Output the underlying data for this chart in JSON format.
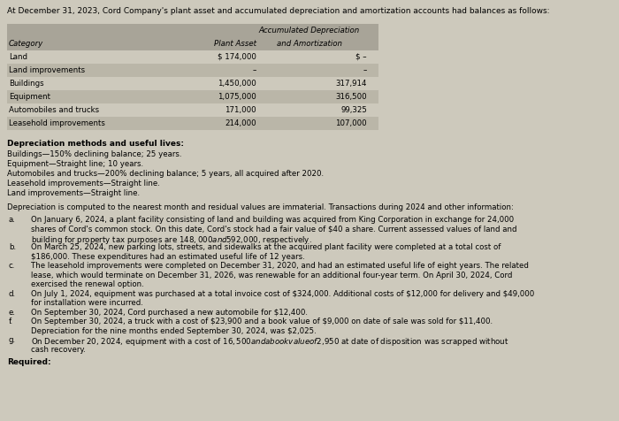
{
  "title": "At December 31, 2023, Cord Company's plant asset and accumulated depreciation and amortization accounts had balances as follows:",
  "bg_color": "#cdc9bc",
  "table": {
    "header_row1": [
      "",
      "",
      "Accumulated Depreciation"
    ],
    "header_row2": [
      "Category",
      "Plant Asset",
      "and Amortization"
    ],
    "rows": [
      [
        "Land",
        "$ 174,000",
        "$ –"
      ],
      [
        "Land improvements",
        "–",
        "–"
      ],
      [
        "Buildings",
        "1,450,000",
        "317,914"
      ],
      [
        "Equipment",
        "1,075,000",
        "316,500"
      ],
      [
        "Automobiles and trucks",
        "171,000",
        "99,325"
      ],
      [
        "Leasehold improvements",
        "214,000",
        "107,000"
      ]
    ],
    "header_bg": "#a8a498",
    "row_bg_alt": "#bab6a8"
  },
  "depreciation_header": "Depreciation methods and useful lives:",
  "depreciation_lines": [
    "Buildings—150% declining balance; 25 years.",
    "Equipment—Straight line; 10 years.",
    "Automobiles and trucks—200% declining balance; 5 years, all acquired after 2020.",
    "Leasehold improvements—Straight line.",
    "Land improvements—Straight line."
  ],
  "intro_line": "Depreciation is computed to the nearest month and residual values are immaterial. Transactions during 2024 and other information:",
  "transactions": [
    {
      "label": "a.",
      "lines": [
        "On January 6, 2024, a plant facility consisting of land and building was acquired from King Corporation in exchange for 24,000",
        "shares of Cord's common stock. On this date, Cord's stock had a fair value of $40 a share. Current assessed values of land and",
        "building for property tax purposes are $148,000 and $592,000, respectively."
      ]
    },
    {
      "label": "b.",
      "lines": [
        "On March 25, 2024, new parking lots, streets, and sidewalks at the acquired plant facility were completed at a total cost of",
        "$186,000. These expenditures had an estimated useful life of 12 years."
      ]
    },
    {
      "label": "c.",
      "lines": [
        "The leasehold improvements were completed on December 31, 2020, and had an estimated useful life of eight years. The related",
        "lease, which would terminate on December 31, 2026, was renewable for an additional four-year term. On April 30, 2024, Cord",
        "exercised the renewal option."
      ]
    },
    {
      "label": "d.",
      "lines": [
        "On July 1, 2024, equipment was purchased at a total invoice cost of $324,000. Additional costs of $12,000 for delivery and $49,000",
        "for installation were incurred."
      ]
    },
    {
      "label": "e.",
      "lines": [
        "On September 30, 2024, Cord purchased a new automobile for $12,400."
      ]
    },
    {
      "label": "f.",
      "lines": [
        "On September 30, 2024, a truck with a cost of $23,900 and a book value of $9,000 on date of sale was sold for $11,400.",
        "Depreciation for the nine months ended September 30, 2024, was $2,025."
      ]
    },
    {
      "label": "g.",
      "lines": [
        "On December 20, 2024, equipment with a cost of $16,500 and a book value of $2,950 at date of disposition was scrapped without",
        "cash recovery."
      ]
    }
  ],
  "required_label": "Required:",
  "fs_title": 6.5,
  "fs_table": 6.2,
  "fs_body": 6.2,
  "fs_bold": 6.5
}
